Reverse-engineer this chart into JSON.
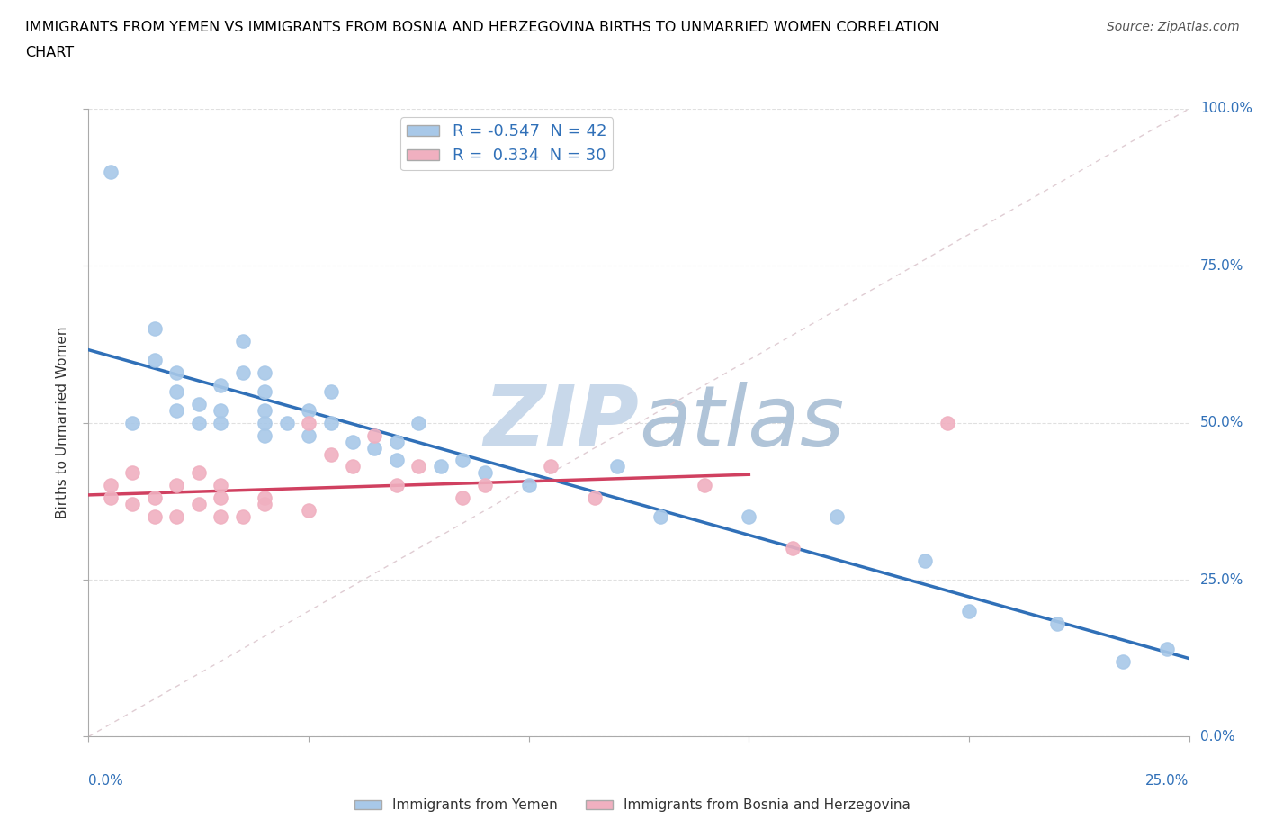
{
  "title_line1": "IMMIGRANTS FROM YEMEN VS IMMIGRANTS FROM BOSNIA AND HERZEGOVINA BIRTHS TO UNMARRIED WOMEN CORRELATION",
  "title_line2": "CHART",
  "source_text": "Source: ZipAtlas.com",
  "ylabel": "Births to Unmarried Women",
  "r_yemen": -0.547,
  "n_yemen": 42,
  "r_bosnia": 0.334,
  "n_bosnia": 30,
  "legend_label_yemen": "Immigrants from Yemen",
  "legend_label_bosnia": "Immigrants from Bosnia and Herzegovina",
  "color_yemen": "#a8c8e8",
  "color_bosnia": "#f0b0c0",
  "trendline_yemen": "#3070b8",
  "trendline_bosnia": "#d04060",
  "trendline_diag": "#d8c0c8",
  "background_color": "#ffffff",
  "watermark_line1_color": "#c8d8e8",
  "watermark_line2_color": "#b8c8d8",
  "yemen_x": [
    0.005,
    0.01,
    0.015,
    0.015,
    0.02,
    0.02,
    0.02,
    0.025,
    0.025,
    0.03,
    0.03,
    0.03,
    0.035,
    0.035,
    0.04,
    0.04,
    0.04,
    0.04,
    0.04,
    0.045,
    0.05,
    0.05,
    0.055,
    0.055,
    0.06,
    0.065,
    0.07,
    0.07,
    0.075,
    0.08,
    0.085,
    0.09,
    0.1,
    0.12,
    0.13,
    0.15,
    0.17,
    0.19,
    0.2,
    0.22,
    0.235,
    0.245
  ],
  "yemen_y": [
    0.9,
    0.5,
    0.6,
    0.65,
    0.52,
    0.55,
    0.58,
    0.5,
    0.53,
    0.5,
    0.52,
    0.56,
    0.58,
    0.63,
    0.48,
    0.5,
    0.52,
    0.55,
    0.58,
    0.5,
    0.48,
    0.52,
    0.5,
    0.55,
    0.47,
    0.46,
    0.44,
    0.47,
    0.5,
    0.43,
    0.44,
    0.42,
    0.4,
    0.43,
    0.35,
    0.35,
    0.35,
    0.28,
    0.2,
    0.18,
    0.12,
    0.14
  ],
  "bosnia_x": [
    0.005,
    0.005,
    0.01,
    0.01,
    0.015,
    0.015,
    0.02,
    0.02,
    0.025,
    0.025,
    0.03,
    0.03,
    0.03,
    0.035,
    0.04,
    0.04,
    0.05,
    0.05,
    0.055,
    0.06,
    0.065,
    0.07,
    0.075,
    0.085,
    0.09,
    0.105,
    0.115,
    0.14,
    0.16,
    0.195
  ],
  "bosnia_y": [
    0.38,
    0.4,
    0.37,
    0.42,
    0.35,
    0.38,
    0.35,
    0.4,
    0.37,
    0.42,
    0.35,
    0.38,
    0.4,
    0.35,
    0.37,
    0.38,
    0.36,
    0.5,
    0.45,
    0.43,
    0.48,
    0.4,
    0.43,
    0.38,
    0.4,
    0.43,
    0.38,
    0.4,
    0.3,
    0.5
  ],
  "xlim": [
    0.0,
    0.25
  ],
  "ylim": [
    0.0,
    1.0
  ],
  "xticks": [
    0.0,
    0.05,
    0.1,
    0.15,
    0.2,
    0.25
  ],
  "yticks": [
    0.0,
    0.25,
    0.5,
    0.75,
    1.0
  ],
  "xtick_labels": [
    "",
    "",
    "",
    "",
    "",
    ""
  ],
  "ytick_labels_right": [
    "0.0%",
    "25.0%",
    "50.0%",
    "75.0%",
    "100.0%"
  ]
}
